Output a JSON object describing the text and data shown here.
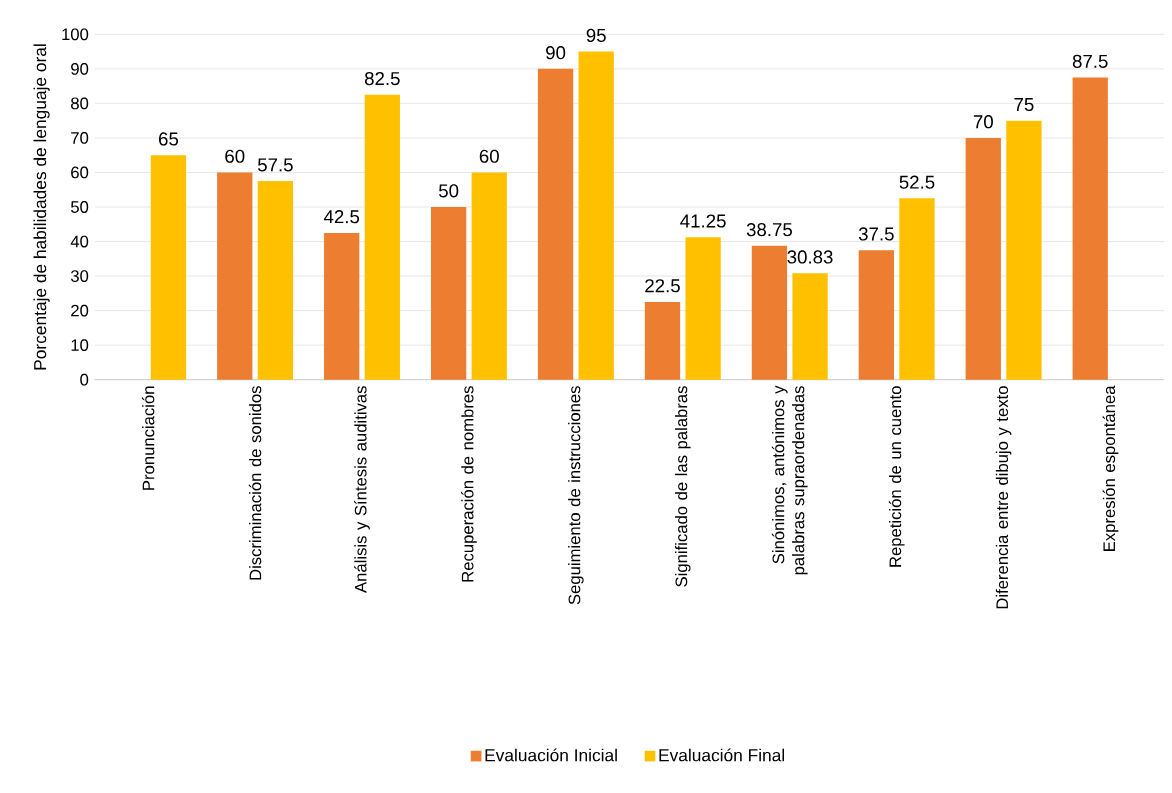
{
  "chart_data": {
    "type": "bar",
    "ylabel": "Porcentaje de habilidades de lenguaje oral",
    "categories": [
      "Pronunciación",
      "Discriminación de sonidos",
      "Análisis y Síntesis auditivas",
      "Recuperación de nombres",
      "Seguimiento de instrucciones",
      "Significado de las palabras",
      "Sinónimos, antónimos y palabras supraordenadas",
      "Repetición de un cuento",
      "Diferencia entre dibujo y texto",
      "Expresión espontánea"
    ],
    "series": [
      {
        "name": "Evaluación Inicial",
        "color": "#ed7d31",
        "values": [
          null,
          60,
          42.5,
          50,
          90,
          22.5,
          38.75,
          37.5,
          70,
          87.5
        ]
      },
      {
        "name": "Evaluación Final",
        "color": "#ffc000",
        "values": [
          65,
          57.5,
          82.5,
          60,
          95,
          41.25,
          30.83,
          52.5,
          75,
          null
        ]
      }
    ],
    "ylim": [
      0,
      100
    ],
    "yticks": [
      0,
      10,
      20,
      30,
      40,
      50,
      60,
      70,
      80,
      90,
      100
    ],
    "grid": "y",
    "legend": "bottom",
    "data_labels": true
  }
}
